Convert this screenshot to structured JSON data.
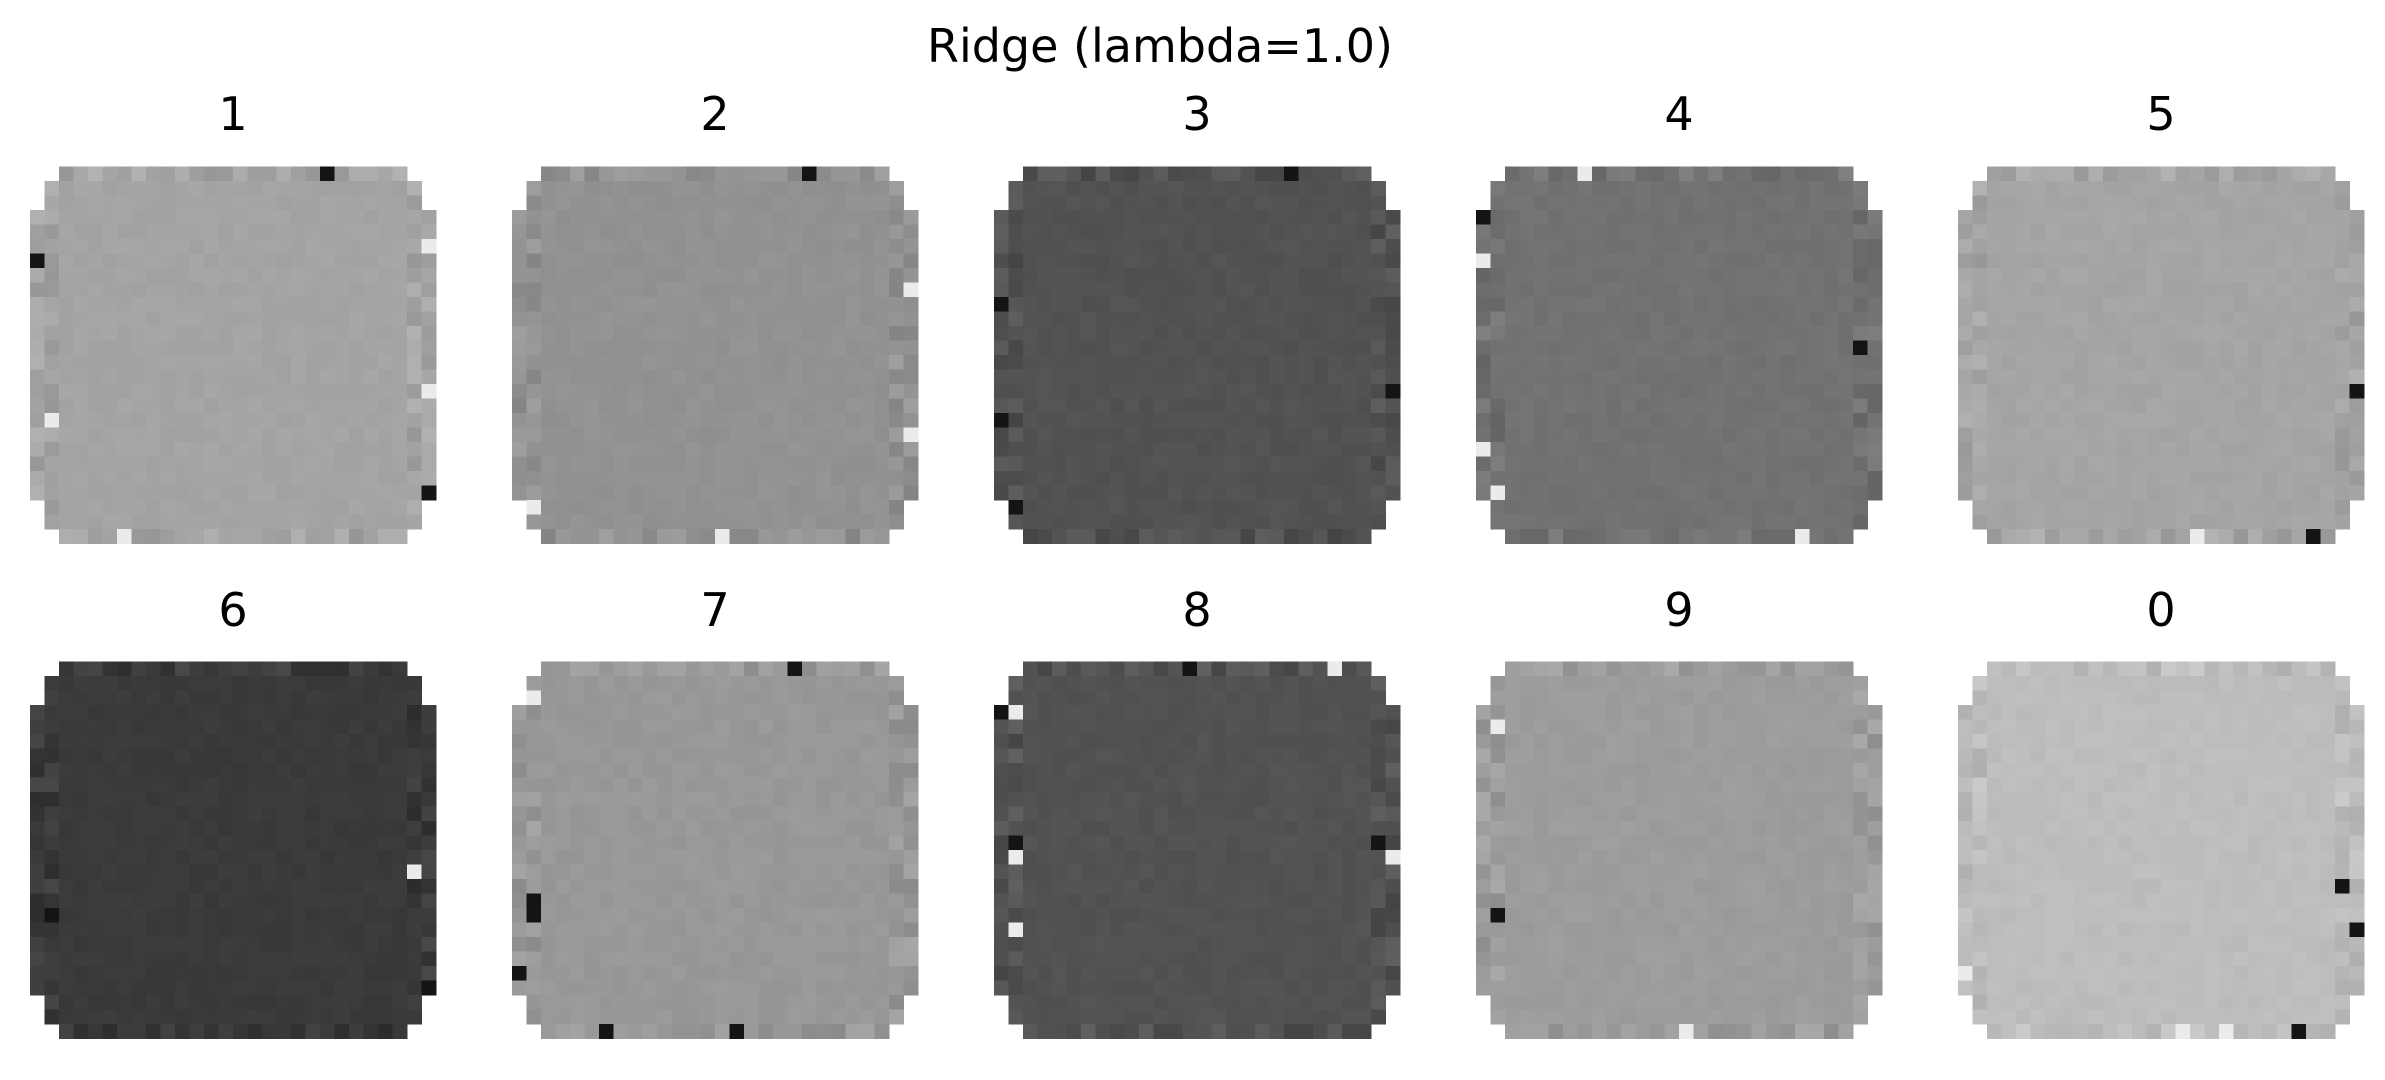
{
  "chart_data": {
    "type": "heatmap",
    "title": "Ridge (lambda=1.0)",
    "colormap": "gray",
    "grid": false,
    "axes_visible": false,
    "image_size": [
      28,
      28
    ],
    "panels": [
      {
        "label": "1",
        "base_gray": "#a4a4a4"
      },
      {
        "label": "2",
        "base_gray": "#929292"
      },
      {
        "label": "3",
        "base_gray": "#525252"
      },
      {
        "label": "4",
        "base_gray": "#727272"
      },
      {
        "label": "5",
        "base_gray": "#a5a5a5"
      },
      {
        "label": "6",
        "base_gray": "#3a3a3a"
      },
      {
        "label": "7",
        "base_gray": "#989898"
      },
      {
        "label": "8",
        "base_gray": "#525252"
      },
      {
        "label": "9",
        "base_gray": "#9c9c9c"
      },
      {
        "label": "0",
        "base_gray": "#bdbdbd"
      }
    ]
  }
}
